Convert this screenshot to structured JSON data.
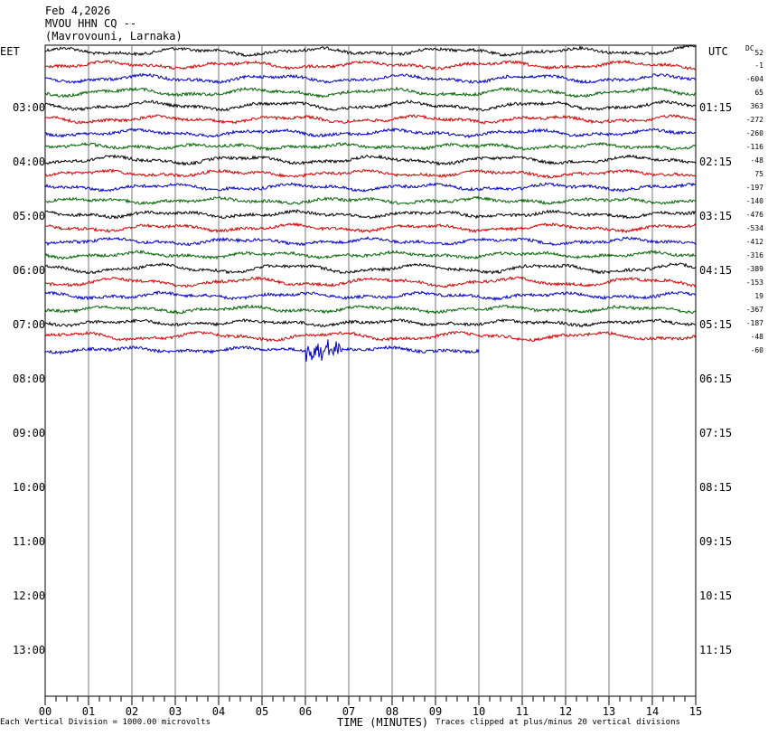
{
  "header": {
    "date": "Feb 4,2026",
    "station": "MVOU HHN CQ --",
    "location": "(Mavrovouni, Larnaka)"
  },
  "labels": {
    "left_tz": "EET",
    "right_tz": "UTC",
    "dc": "DC"
  },
  "footer": {
    "left": "Each Vertical Division = 1000.00 microvolts",
    "center": "TIME (MINUTES)",
    "right": "Traces clipped at plus/minus 20 vertical divisions"
  },
  "colors": [
    "#000000",
    "#d40000",
    "#0000c8",
    "#006400"
  ],
  "chart_data": {
    "type": "line",
    "xlabel": "TIME (MINUTES)",
    "xlim": [
      0,
      15
    ],
    "x_ticks": [
      "00",
      "01",
      "02",
      "03",
      "04",
      "05",
      "06",
      "07",
      "08",
      "09",
      "10",
      "11",
      "12",
      "13",
      "14",
      "15"
    ],
    "hour_rows_left": [
      "03:00",
      "04:00",
      "05:00",
      "06:00",
      "07:00",
      "08:00",
      "09:00",
      "10:00",
      "11:00",
      "12:00",
      "13:00"
    ],
    "hour_rows_right": [
      "01:15",
      "02:15",
      "03:15",
      "04:15",
      "05:15",
      "06:15",
      "07:15",
      "08:15",
      "09:15",
      "10:15",
      "11:15"
    ],
    "dc_offsets": [
      "52",
      "-1",
      "-604",
      "65",
      "363",
      "-272",
      "-260",
      "-116",
      "-48",
      "75",
      "-197",
      "-140",
      "-476",
      "-534",
      "-412",
      "-316",
      "-389",
      "-153",
      "19",
      "-367",
      "-187",
      "-48",
      "-60"
    ],
    "traces_total": 23,
    "last_trace_end_minute": 10.0,
    "event": {
      "trace": 22,
      "start_minute": 6.0,
      "end_minute": 6.85
    },
    "grid": true
  }
}
